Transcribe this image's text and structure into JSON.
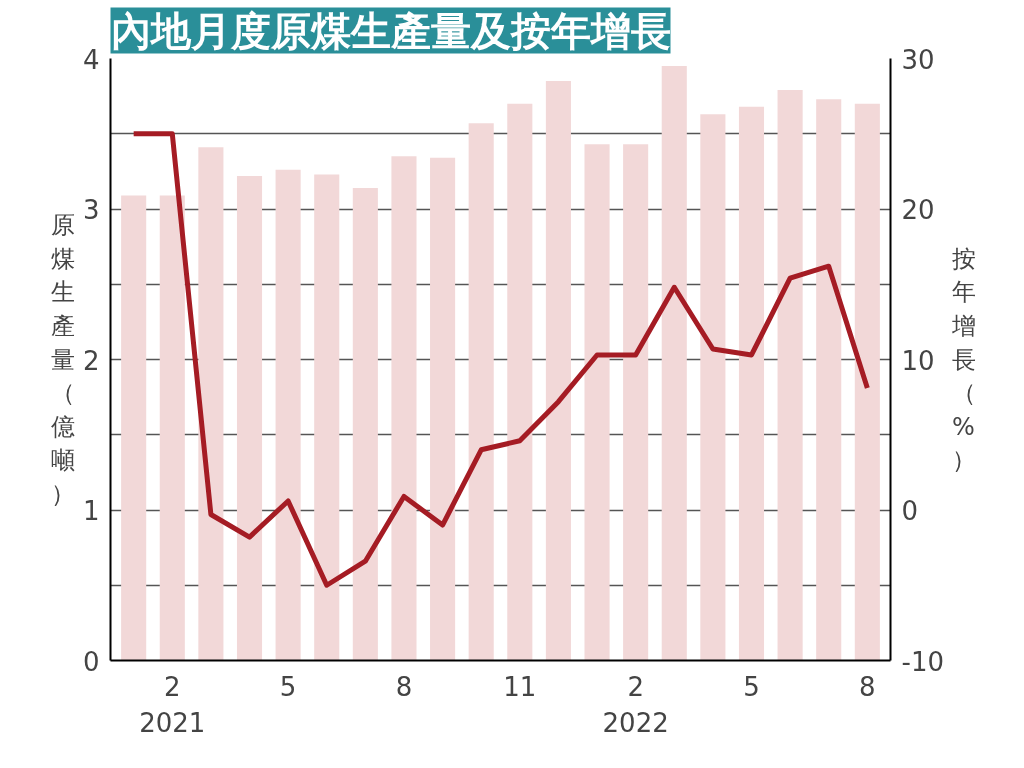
{
  "chart_data": {
    "type": "bar",
    "title": "內地月度原煤生產量及按年增長",
    "ylabel": "原煤生產量（億噸）",
    "y2label": "按年增長（%）",
    "categories": [
      null,
      "2\n2021",
      null,
      null,
      "5",
      null,
      null,
      "8",
      null,
      null,
      "11",
      null,
      null,
      "2\n2022",
      null,
      null,
      "5",
      null,
      null,
      "8"
    ],
    "series": [
      {
        "color": "#f2d8d8",
        "values": [
          3.09,
          3.09,
          3.41,
          3.22,
          3.26,
          3.23,
          3.14,
          3.35,
          3.34,
          3.57,
          3.7,
          3.85,
          3.43,
          3.43,
          3.95,
          3.63,
          3.68,
          3.79,
          3.73,
          3.7
        ]
      },
      {
        "type": "line",
        "axis": "y2",
        "color": "#a51c24",
        "values": [
          25.0,
          25.0,
          -0.3,
          -1.8,
          0.6,
          -5.0,
          -3.4,
          0.9,
          -1.0,
          4.0,
          4.6,
          7.2,
          10.3,
          10.3,
          14.8,
          10.7,
          10.3,
          15.4,
          16.2,
          8.1
        ]
      }
    ],
    "ylim": [
      0,
      4
    ],
    "yticks": [
      0,
      {
        "value": 0.5,
        "label": null
      },
      1,
      {
        "value": 1.5,
        "label": null
      },
      2,
      {
        "value": 2.5,
        "label": null
      },
      3,
      {
        "value": 3.5,
        "label": null
      },
      4
    ],
    "y2lim": [
      -10,
      30
    ],
    "y2ticks": [
      -10,
      0,
      10,
      20,
      30
    ],
    "grid": "y",
    "line_style": "solid",
    "marker": "none"
  }
}
